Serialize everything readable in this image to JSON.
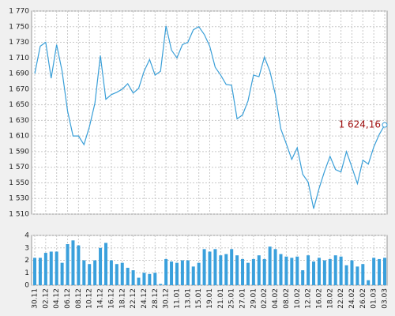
{
  "chart_data": [
    {
      "type": "line",
      "color": "#3a9fd8",
      "grid": true,
      "ylim": [
        1510,
        1770
      ],
      "yticks": [
        {
          "value": 1510,
          "label": "1 510"
        },
        {
          "value": 1530,
          "label": "1 530"
        },
        {
          "value": 1550,
          "label": "1 550"
        },
        {
          "value": 1570,
          "label": "1 570"
        },
        {
          "value": 1590,
          "label": "1 590"
        },
        {
          "value": 1610,
          "label": "1 610"
        },
        {
          "value": 1630,
          "label": "1 630"
        },
        {
          "value": 1650,
          "label": "1 650"
        },
        {
          "value": 1670,
          "label": "1 670"
        },
        {
          "value": 1690,
          "label": "1 690"
        },
        {
          "value": 1710,
          "label": "1 710"
        },
        {
          "value": 1730,
          "label": "1 730"
        },
        {
          "value": 1750,
          "label": "1 750"
        },
        {
          "value": 1770,
          "label": "1 770"
        }
      ],
      "values": [
        1690,
        1725,
        1730,
        1684,
        1727,
        1693,
        1642,
        1610,
        1610,
        1599,
        1622,
        1652,
        1713,
        1657,
        1663,
        1666,
        1670,
        1677,
        1665,
        1671,
        1693,
        1708,
        1688,
        1693,
        1751,
        1720,
        1710,
        1727,
        1730,
        1746,
        1750,
        1740,
        1725,
        1698,
        1688,
        1676,
        1675,
        1632,
        1637,
        1655,
        1688,
        1686,
        1711,
        1693,
        1663,
        1619,
        1600,
        1580,
        1595,
        1561,
        1551,
        1517,
        1543,
        1565,
        1584,
        1567,
        1564,
        1590,
        1570,
        1549,
        1579,
        1574,
        1596,
        1612,
        1624.16
      ],
      "last_value_label": "1 624,16"
    },
    {
      "type": "bar",
      "color": "#3aa0dc",
      "grid": true,
      "ylim": [
        0,
        4
      ],
      "yticks": [
        0,
        1,
        2,
        3,
        4
      ],
      "categories": [
        "30.11",
        null,
        "02.12",
        null,
        "04.12",
        null,
        "06.12",
        null,
        "08.12",
        null,
        "10.12",
        null,
        "14.12",
        null,
        "16.12",
        null,
        "18.12",
        null,
        "22.12",
        null,
        "24.12",
        null,
        "28.12",
        null,
        "30.12",
        null,
        "11.01",
        null,
        "13.01",
        null,
        "15.01",
        null,
        "19.01",
        null,
        "21.01",
        null,
        "25.01",
        null,
        "27.01",
        null,
        "29.01",
        null,
        "02.02",
        null,
        "04.02",
        null,
        "08.02",
        null,
        "10.02",
        null,
        "12.02",
        null,
        "16.02",
        null,
        "18.02",
        null,
        "22.02",
        null,
        "24.02",
        null,
        "26.02",
        null,
        "01.03",
        null,
        "03.03"
      ],
      "values": [
        2.2,
        2.2,
        2.6,
        2.7,
        2.7,
        1.8,
        3.3,
        3.6,
        3.2,
        2.0,
        1.7,
        2.0,
        3.0,
        3.4,
        2.0,
        1.7,
        1.8,
        1.4,
        1.2,
        0.6,
        1.0,
        0.9,
        1.0,
        0.1,
        2.1,
        1.9,
        1.8,
        2.0,
        2.0,
        1.5,
        1.8,
        2.9,
        2.7,
        2.9,
        2.4,
        2.5,
        2.9,
        2.4,
        2.1,
        1.8,
        2.1,
        2.4,
        2.1,
        3.1,
        2.9,
        2.5,
        2.3,
        2.2,
        2.3,
        1.2,
        2.4,
        1.9,
        2.2,
        2.0,
        2.1,
        2.4,
        2.3,
        1.6,
        2.0,
        1.5,
        1.7,
        0.4,
        2.2,
        2.1,
        2.2
      ]
    }
  ]
}
